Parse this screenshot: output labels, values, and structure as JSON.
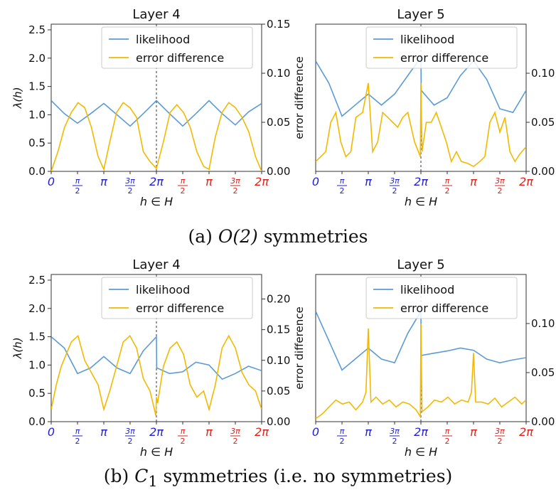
{
  "chart_data": [
    {
      "panel": "a-left",
      "type": "line",
      "title": "Layer 4",
      "xlabel": "h ∈ H",
      "ylabel": "λ(h)",
      "ylabel_right": "error difference",
      "xlim": [
        0,
        12.566
      ],
      "ylim_left": [
        0,
        2.6
      ],
      "ylim_right": [
        0,
        0.15
      ],
      "yticks_left": [
        "0.0",
        "0.5",
        "1.0",
        "1.5",
        "2.0",
        "2.5"
      ],
      "yticks_right": [
        "0.00",
        "0.05",
        "0.10",
        "0.15"
      ],
      "xtick_labels": [
        "0",
        "π/2",
        "π",
        "3π/2",
        "2π",
        "π/2",
        "π",
        "3π/2",
        "2π"
      ],
      "divider_x": 6.283,
      "legend": [
        "likelihood",
        "error difference"
      ],
      "legend_position": "top-right",
      "series": [
        {
          "name": "likelihood",
          "axis": "left",
          "color": "#5b9bd5",
          "x": [
            0,
            0.785,
            1.571,
            2.356,
            3.142,
            3.927,
            4.712,
            5.498,
            6.283,
            7.069,
            7.854,
            8.639,
            9.425,
            10.21,
            10.996,
            11.781,
            12.566
          ],
          "y": [
            1.25,
            1.02,
            0.85,
            1.02,
            1.2,
            1.0,
            0.8,
            1.02,
            1.25,
            1.02,
            0.8,
            1.02,
            1.25,
            1.02,
            0.82,
            1.05,
            1.2
          ]
        },
        {
          "name": "error difference",
          "axis": "right",
          "color": "#f2b900",
          "x": [
            0,
            0.4,
            0.8,
            1.2,
            1.6,
            2.0,
            2.4,
            2.8,
            3.142,
            3.5,
            3.9,
            4.3,
            4.7,
            5.1,
            5.5,
            5.9,
            6.283,
            6.7,
            7.1,
            7.5,
            7.9,
            8.3,
            8.7,
            9.1,
            9.425,
            9.8,
            10.2,
            10.6,
            11.0,
            11.4,
            11.8,
            12.2,
            12.566
          ],
          "y": [
            0.0,
            0.02,
            0.045,
            0.06,
            0.07,
            0.065,
            0.045,
            0.015,
            0.002,
            0.03,
            0.06,
            0.07,
            0.065,
            0.055,
            0.02,
            0.01,
            0.003,
            0.03,
            0.06,
            0.068,
            0.06,
            0.045,
            0.02,
            0.005,
            0.002,
            0.035,
            0.06,
            0.07,
            0.065,
            0.055,
            0.04,
            0.015,
            0.0
          ]
        }
      ]
    },
    {
      "panel": "a-right",
      "type": "line",
      "title": "Layer 5",
      "xlabel": "h ∈ H",
      "xlim": [
        0,
        12.566
      ],
      "ylim_left": [
        0,
        2.0
      ],
      "ylim_right": [
        0,
        0.15
      ],
      "yticks_right": [
        "0.00",
        "0.05",
        "0.10"
      ],
      "xtick_labels": [
        "0",
        "π/2",
        "π",
        "3π/2",
        "2π",
        "π/2",
        "π",
        "3π/2",
        "2π"
      ],
      "divider_x": 6.283,
      "legend": [
        "likelihood",
        "error difference"
      ],
      "legend_position": "top-right",
      "series": [
        {
          "name": "likelihood",
          "axis": "left",
          "color": "#5b9bd5",
          "x": [
            0,
            0.785,
            1.571,
            2.356,
            3.142,
            3.927,
            4.712,
            5.498,
            6.283,
            6.3,
            7.069,
            7.854,
            8.639,
            9.425,
            10.21,
            10.996,
            11.781,
            12.566
          ],
          "y": [
            1.5,
            1.2,
            0.75,
            0.9,
            1.05,
            0.9,
            1.05,
            1.3,
            1.55,
            1.1,
            0.9,
            1.0,
            1.3,
            1.5,
            1.25,
            0.85,
            0.8,
            1.1
          ]
        },
        {
          "name": "error difference",
          "axis": "right",
          "color": "#f2b900",
          "x": [
            0,
            0.3,
            0.6,
            0.9,
            1.2,
            1.5,
            1.8,
            2.1,
            2.4,
            2.8,
            3.142,
            3.4,
            3.7,
            4.0,
            4.3,
            4.6,
            4.9,
            5.2,
            5.5,
            5.9,
            6.25,
            6.283,
            6.35,
            6.6,
            6.9,
            7.2,
            7.5,
            7.8,
            8.1,
            8.4,
            8.7,
            9.1,
            9.425,
            9.8,
            10.1,
            10.4,
            10.7,
            11.0,
            11.3,
            11.6,
            11.9,
            12.2,
            12.566
          ],
          "y": [
            0.01,
            0.015,
            0.02,
            0.05,
            0.06,
            0.03,
            0.015,
            0.02,
            0.055,
            0.06,
            0.09,
            0.02,
            0.03,
            0.06,
            0.055,
            0.05,
            0.045,
            0.055,
            0.06,
            0.03,
            0.015,
            0.09,
            0.02,
            0.05,
            0.05,
            0.06,
            0.045,
            0.03,
            0.01,
            0.02,
            0.01,
            0.008,
            0.005,
            0.01,
            0.015,
            0.05,
            0.06,
            0.04,
            0.055,
            0.02,
            0.01,
            0.018,
            0.025
          ]
        }
      ]
    },
    {
      "panel": "b-left",
      "type": "line",
      "title": "Layer 4",
      "xlabel": "h ∈ H",
      "ylabel": "λ(h)",
      "ylabel_right": "error difference",
      "xlim": [
        0,
        12.566
      ],
      "ylim_left": [
        0,
        2.6
      ],
      "ylim_right": [
        0,
        0.24
      ],
      "yticks_left": [
        "0.0",
        "0.5",
        "1.0",
        "1.5",
        "2.0",
        "2.5"
      ],
      "yticks_right": [
        "0.00",
        "0.05",
        "0.10",
        "0.15",
        "0.20"
      ],
      "xtick_labels": [
        "0",
        "π/2",
        "π",
        "3π/2",
        "2π",
        "π/2",
        "π",
        "3π/2",
        "2π"
      ],
      "divider_x": 6.283,
      "legend": [
        "likelihood",
        "error difference"
      ],
      "legend_position": "top-right",
      "series": [
        {
          "name": "likelihood",
          "axis": "left",
          "color": "#5b9bd5",
          "x": [
            0,
            0.785,
            1.571,
            2.356,
            3.142,
            3.927,
            4.712,
            5.498,
            6.283,
            6.3,
            7.069,
            7.854,
            8.639,
            9.425,
            10.21,
            10.996,
            11.781,
            12.566
          ],
          "y": [
            1.5,
            1.3,
            0.85,
            0.95,
            1.15,
            0.95,
            0.85,
            1.25,
            1.5,
            0.95,
            0.85,
            0.88,
            1.05,
            1.0,
            0.75,
            0.85,
            0.98,
            0.9
          ]
        },
        {
          "name": "error difference",
          "axis": "right",
          "color": "#f2b900",
          "x": [
            0,
            0.3,
            0.6,
            0.9,
            1.2,
            1.6,
            2.0,
            2.4,
            2.8,
            3.142,
            3.5,
            3.9,
            4.3,
            4.7,
            5.1,
            5.5,
            5.9,
            6.25,
            6.283,
            6.35,
            6.7,
            7.1,
            7.5,
            7.9,
            8.3,
            8.7,
            9.1,
            9.425,
            9.8,
            10.2,
            10.6,
            11.0,
            11.4,
            11.8,
            12.2,
            12.566
          ],
          "y": [
            0.02,
            0.06,
            0.09,
            0.11,
            0.13,
            0.14,
            0.1,
            0.08,
            0.06,
            0.02,
            0.05,
            0.09,
            0.13,
            0.14,
            0.12,
            0.07,
            0.05,
            0.01,
            0.04,
            0.03,
            0.09,
            0.12,
            0.13,
            0.11,
            0.06,
            0.04,
            0.05,
            0.02,
            0.06,
            0.12,
            0.14,
            0.12,
            0.08,
            0.06,
            0.05,
            0.02
          ]
        }
      ]
    },
    {
      "panel": "b-right",
      "type": "line",
      "title": "Layer 5",
      "xlabel": "h ∈ H",
      "xlim": [
        0,
        12.566
      ],
      "ylim_left": [
        0,
        2.0
      ],
      "ylim_right": [
        0,
        0.15
      ],
      "yticks_right": [
        "0.00",
        "0.05",
        "0.10"
      ],
      "xtick_labels": [
        "0",
        "π/2",
        "π",
        "3π/2",
        "2π",
        "π/2",
        "π",
        "3π/2",
        "2π"
      ],
      "divider_x": 6.283,
      "legend": [
        "likelihood",
        "error difference"
      ],
      "legend_position": "top-right",
      "series": [
        {
          "name": "likelihood",
          "axis": "left",
          "color": "#5b9bd5",
          "x": [
            0,
            0.785,
            1.571,
            2.356,
            3.142,
            3.927,
            4.712,
            5.498,
            6.283,
            6.3,
            7.069,
            7.854,
            8.639,
            9.425,
            10.21,
            10.996,
            11.781,
            12.566
          ],
          "y": [
            1.5,
            1.1,
            0.7,
            0.85,
            1.0,
            0.85,
            0.8,
            1.2,
            1.5,
            0.9,
            0.93,
            0.96,
            1.0,
            0.97,
            0.85,
            0.8,
            0.84,
            0.87
          ]
        },
        {
          "name": "error difference",
          "axis": "right",
          "color": "#f2b900",
          "x": [
            0,
            0.4,
            0.8,
            1.2,
            1.6,
            2.0,
            2.4,
            2.8,
            3.0,
            3.142,
            3.3,
            3.6,
            4.0,
            4.4,
            4.8,
            5.2,
            5.6,
            6.0,
            6.25,
            6.283,
            6.35,
            6.7,
            7.1,
            7.5,
            7.9,
            8.3,
            8.7,
            9.1,
            9.3,
            9.425,
            9.55,
            9.9,
            10.3,
            10.7,
            11.1,
            11.5,
            11.9,
            12.3,
            12.566
          ],
          "y": [
            0.003,
            0.008,
            0.015,
            0.022,
            0.018,
            0.02,
            0.012,
            0.02,
            0.03,
            0.095,
            0.02,
            0.025,
            0.018,
            0.022,
            0.015,
            0.02,
            0.018,
            0.012,
            0.005,
            0.1,
            0.01,
            0.015,
            0.022,
            0.02,
            0.025,
            0.018,
            0.022,
            0.02,
            0.03,
            0.07,
            0.02,
            0.02,
            0.018,
            0.024,
            0.015,
            0.02,
            0.025,
            0.018,
            0.022
          ]
        }
      ]
    }
  ],
  "captions": {
    "a_label": "(a) ",
    "a_symbol": "O(2)",
    "a_text": " symmetries",
    "b_label": "(b) ",
    "b_symbol": "C",
    "b_sub": "1",
    "b_text": " symmetries (i.e. no symmetries)"
  },
  "colors": {
    "likelihood": "#5b9bd5",
    "error": "#f2b900",
    "tick_first_half": "#1f1fd0",
    "tick_second_half": "#e0201a",
    "axis": "#333333"
  }
}
